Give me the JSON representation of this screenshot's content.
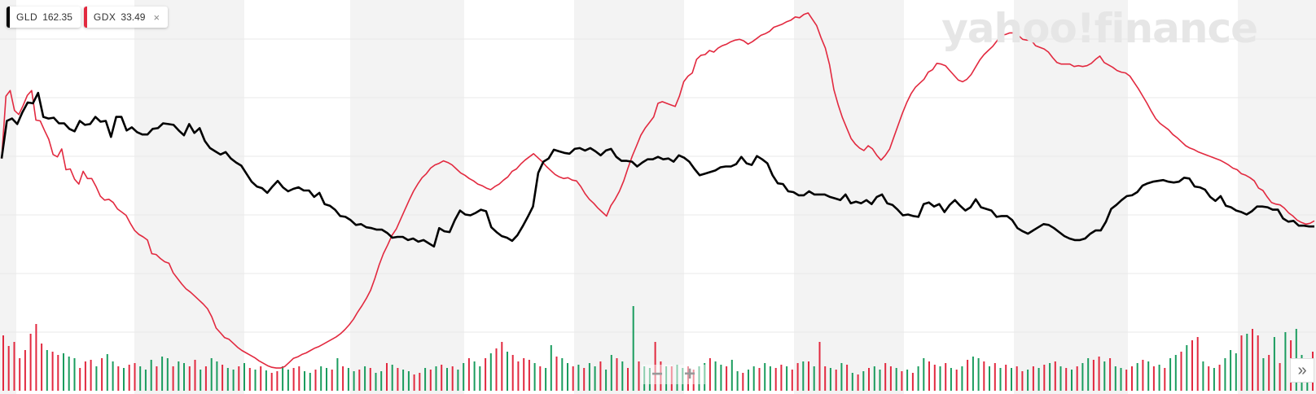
{
  "legend": {
    "items": [
      {
        "symbol": "GLD",
        "value": "162.35",
        "color": "#000000",
        "closable": false
      },
      {
        "symbol": "GDX",
        "value": "33.49",
        "color": "#e2293f",
        "closable": true
      }
    ],
    "close_glyph": "×"
  },
  "watermark": "yahoo!finance",
  "controls": {
    "zoom_out": "−",
    "zoom_in": "+",
    "scroll_right": "»"
  },
  "colors": {
    "stripe": "#f3f3f3",
    "grid": "#e8e8e8",
    "up": "#1a9c5e",
    "down": "#e2293f",
    "gld": "#000000",
    "gdx": "#e2293f"
  },
  "chart_data": {
    "type": "line",
    "title": "",
    "xlabel": "",
    "ylabel": "",
    "legend_position": "top-left",
    "grid": true,
    "series": [
      {
        "name": "GLD",
        "color": "#000000",
        "values": [
          270,
          317,
          320,
          313,
          328,
          340,
          339,
          352,
          322,
          320,
          321,
          314,
          314,
          307,
          304,
          317,
          312,
          313,
          322,
          316,
          317,
          297,
          322,
          322,
          305,
          309,
          303,
          300,
          300,
          307,
          308,
          314,
          313,
          312,
          305,
          299,
          313,
          302,
          308,
          292,
          283,
          279,
          275,
          278,
          270,
          265,
          261,
          251,
          241,
          235,
          233,
          227,
          235,
          242,
          234,
          229,
          232,
          234,
          230,
          230,
          222,
          227,
          213,
          211,
          206,
          198,
          197,
          193,
          187,
          188,
          184,
          183,
          181,
          181,
          177,
          171,
          172,
          172,
          168,
          170,
          166,
          168,
          164,
          160,
          183,
          179,
          178,
          193,
          205,
          200,
          199,
          202,
          206,
          204,
          184,
          178,
          173,
          171,
          167,
          174,
          185,
          197,
          210,
          252,
          266,
          270,
          281,
          279,
          277,
          276,
          282,
          283,
          280,
          283,
          279,
          274,
          280,
          282,
          272,
          267,
          267,
          266,
          260,
          265,
          269,
          269,
          272,
          269,
          270,
          266,
          274,
          271,
          266,
          257,
          249,
          251,
          253,
          255,
          259,
          260,
          260,
          263,
          272,
          264,
          262,
          273,
          269,
          264,
          249,
          239,
          238,
          229,
          228,
          224,
          224,
          229,
          225,
          225,
          225,
          222,
          220,
          218,
          225,
          214,
          216,
          214,
          218,
          213,
          222,
          225,
          214,
          212,
          206,
          199,
          200,
          198,
          197,
          213,
          215,
          210,
          213,
          203,
          212,
          218,
          211,
          205,
          209,
          219,
          209,
          207,
          205,
          197,
          198,
          198,
          193,
          183,
          179,
          176,
          180,
          184,
          188,
          187,
          183,
          178,
          173,
          170,
          168,
          168,
          170,
          176,
          180,
          180,
          191,
          207,
          212,
          218,
          223,
          224,
          228,
          236,
          239,
          241,
          242,
          243,
          241,
          240,
          241,
          246,
          245,
          235,
          234,
          231,
          222,
          217,
          223,
          211,
          209,
          205,
          203,
          200,
          204,
          210,
          210,
          209,
          206,
          206,
          195,
          191,
          192,
          186,
          186,
          185,
          185
        ]
      },
      {
        "name": "GDX",
        "color": "#e2293f",
        "values": [
          270,
          348,
          355,
          330,
          325,
          336,
          349,
          355,
          318,
          317,
          305,
          294,
          275,
          272,
          282,
          256,
          257,
          244,
          238,
          254,
          245,
          245,
          235,
          223,
          218,
          219,
          215,
          207,
          203,
          199,
          189,
          180,
          175,
          172,
          168,
          151,
          150,
          145,
          141,
          139,
          127,
          120,
          113,
          107,
          103,
          98,
          93,
          88,
          82,
          72,
          58,
          52,
          46,
          44,
          39,
          34,
          30,
          27,
          24,
          21,
          17,
          14,
          11,
          9,
          8,
          8,
          10,
          15,
          20,
          22,
          25,
          27,
          30,
          33,
          35,
          38,
          41,
          44,
          47,
          51,
          56,
          62,
          69,
          78,
          86,
          95,
          105,
          120,
          137,
          151,
          162,
          174,
          182,
          194,
          206,
          218,
          229,
          238,
          246,
          251,
          258,
          262,
          264,
          267,
          265,
          262,
          257,
          252,
          249,
          245,
          242,
          238,
          236,
          233,
          231,
          235,
          238,
          243,
          247,
          254,
          257,
          263,
          268,
          272,
          276,
          271,
          266,
          260,
          255,
          250,
          247,
          245,
          246,
          243,
          242,
          235,
          226,
          219,
          214,
          208,
          203,
          198,
          211,
          219,
          229,
          242,
          258,
          273,
          286,
          299,
          308,
          315,
          322,
          339,
          341,
          339,
          337,
          335,
          348,
          366,
          373,
          377,
          394,
          399,
          400,
          405,
          403,
          408,
          411,
          413,
          416,
          418,
          419,
          417,
          413,
          416,
          420,
          424,
          426,
          429,
          434,
          436,
          438,
          441,
          443,
          447,
          446,
          450,
          452,
          444,
          436,
          421,
          408,
          387,
          356,
          337,
          321,
          308,
          295,
          288,
          283,
          280,
          286,
          282,
          274,
          268,
          274,
          282,
          297,
          312,
          327,
          340,
          351,
          359,
          364,
          369,
          378,
          381,
          389,
          388,
          386,
          380,
          374,
          368,
          366,
          369,
          375,
          384,
          393,
          400,
          405,
          410,
          417,
          424,
          425,
          427,
          427,
          424,
          419,
          418,
          418,
          411,
          409,
          407,
          403,
          396,
          390,
          388,
          388,
          388,
          385,
          386,
          385,
          386,
          389,
          394,
          398,
          390,
          387,
          384,
          380,
          378,
          377,
          373,
          365,
          357,
          348,
          339,
          329,
          320,
          314,
          310,
          306,
          300,
          296,
          291,
          286,
          283,
          281,
          278,
          276,
          274,
          272,
          270,
          268,
          265,
          262,
          258,
          256,
          251,
          249,
          246,
          242,
          233,
          230,
          222,
          215,
          213,
          212,
          208,
          202,
          198,
          193,
          190,
          188,
          189,
          192
        ]
      }
    ],
    "volume": {
      "values": [
        68,
        55,
        60,
        40,
        50,
        70,
        82,
        58,
        50,
        48,
        44,
        46,
        42,
        40,
        28,
        36,
        38,
        30,
        40,
        45,
        36,
        30,
        28,
        32,
        34,
        30,
        26,
        38,
        30,
        42,
        40,
        30,
        36,
        34,
        30,
        38,
        26,
        30,
        40,
        36,
        32,
        28,
        26,
        30,
        34,
        28,
        26,
        30,
        25,
        22,
        24,
        30,
        26,
        28,
        30,
        24,
        22,
        26,
        30,
        28,
        26,
        40,
        30,
        28,
        24,
        26,
        30,
        28,
        22,
        24,
        34,
        32,
        28,
        26,
        24,
        20,
        22,
        28,
        26,
        30,
        32,
        28,
        30,
        26,
        34,
        40,
        36,
        30,
        40,
        46,
        52,
        60,
        48,
        44,
        36,
        40,
        38,
        34,
        30,
        28,
        56,
        42,
        40,
        34,
        30,
        32,
        28,
        34,
        30,
        36,
        26,
        44,
        40,
        36,
        28,
        104,
        36,
        30,
        28,
        60,
        36,
        30,
        30,
        32,
        28,
        30,
        26,
        30,
        34,
        40,
        36,
        32,
        30,
        38,
        24,
        22,
        26,
        30,
        28,
        34,
        30,
        28,
        32,
        30,
        26,
        34,
        36,
        36,
        30,
        60,
        30,
        28,
        26,
        34,
        32,
        22,
        20,
        24,
        28,
        30,
        26,
        34,
        30,
        28,
        24,
        26,
        22,
        30,
        40,
        36,
        32,
        30,
        34,
        28,
        26,
        30,
        38,
        42,
        40,
        36,
        30,
        34,
        28,
        32,
        28,
        30,
        24,
        26,
        30,
        28,
        32,
        34,
        36,
        30,
        28,
        26,
        30,
        34,
        40,
        38,
        42,
        36,
        40,
        30,
        28,
        26,
        30,
        34,
        38,
        36,
        30,
        32,
        28,
        40,
        44,
        48,
        56,
        62,
        66,
        36,
        30,
        28,
        32,
        40,
        50,
        46,
        68,
        70,
        76,
        68,
        40,
        44,
        66,
        34,
        72,
        62,
        76,
        44,
        32,
        48
      ],
      "up": [
        false,
        false,
        false,
        false,
        false,
        false,
        false,
        false,
        true,
        false,
        false,
        true,
        true,
        true,
        false,
        false,
        false,
        true,
        false,
        true,
        true,
        false,
        true,
        false,
        false,
        true,
        true,
        true,
        false,
        true,
        true,
        false,
        true,
        true,
        false,
        false,
        true,
        false,
        true,
        true,
        false,
        true,
        true,
        false,
        true,
        false,
        true,
        false,
        true,
        false,
        false,
        true,
        true,
        false,
        false,
        true,
        true,
        false,
        true,
        true,
        false,
        true,
        false,
        true,
        true,
        false,
        true,
        false,
        true,
        true,
        false,
        true,
        false,
        true,
        true,
        false,
        false,
        true,
        false,
        true,
        false,
        true,
        false,
        true,
        true,
        false,
        true,
        true,
        false,
        true,
        false,
        false,
        true,
        false,
        false,
        false,
        false,
        true,
        false,
        true,
        true,
        false,
        true,
        true,
        false,
        true,
        false,
        true,
        true,
        false,
        true,
        true,
        false,
        true,
        false,
        true,
        false,
        true,
        true,
        false,
        false,
        true,
        false,
        true,
        true,
        false,
        false,
        true,
        true,
        false,
        true,
        true,
        false,
        true,
        true,
        false,
        true,
        true,
        false,
        true,
        true,
        false,
        false,
        true,
        false,
        false,
        true,
        false,
        true,
        false,
        false,
        true,
        false,
        true,
        false,
        true,
        false,
        true,
        false,
        true,
        true,
        false,
        false,
        true,
        false,
        true,
        false,
        true,
        true,
        false,
        false,
        true,
        false,
        true,
        false,
        true,
        false,
        true,
        true,
        false,
        true,
        false,
        true,
        false,
        true,
        false,
        false,
        true,
        false,
        true,
        false,
        true,
        false,
        true,
        false,
        true,
        false,
        true,
        true,
        false,
        false,
        true,
        false,
        true,
        true,
        false,
        false,
        true,
        false,
        true,
        false,
        true,
        false,
        true,
        true,
        false,
        true,
        false,
        false,
        true,
        false,
        true,
        false,
        true,
        true,
        true,
        false,
        true,
        false,
        false,
        true,
        false,
        true,
        false,
        true,
        false,
        true,
        true,
        true
      ]
    }
  }
}
